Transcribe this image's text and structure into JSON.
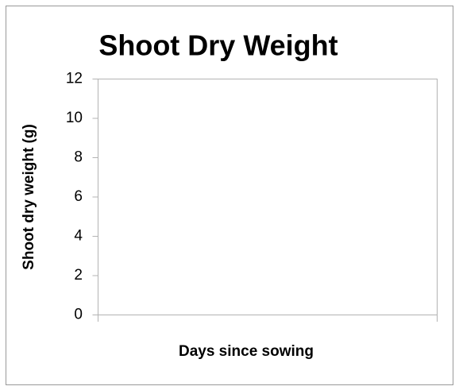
{
  "chart_data": {
    "type": "line",
    "title": "Shoot Dry Weight",
    "xlabel": "Days since sowing",
    "ylabel": "Shoot dry weight (g)",
    "ylim": [
      0,
      12
    ],
    "yticks": [
      0,
      2,
      4,
      6,
      8,
      10,
      12
    ],
    "grid": false
  }
}
